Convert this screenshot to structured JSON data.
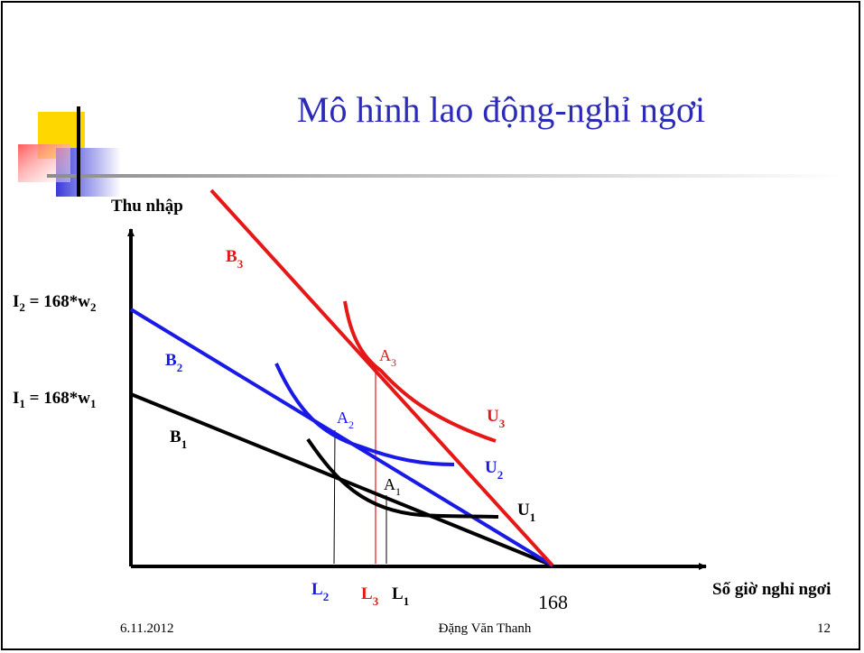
{
  "slide": {
    "title": "Mô hình lao động-nghỉ ngơi",
    "footer": {
      "date": "6.11.2012",
      "author": "Đặng Văn Thanh",
      "page": "12"
    }
  },
  "diagram": {
    "y_axis": {
      "label": "Thu nhập"
    },
    "x_axis": {
      "label": "Số giờ nghỉ ngơi",
      "endpoint": "168"
    },
    "intercepts": {
      "i2": {
        "main": "I",
        "sub": "2",
        "rest": " = 168*w",
        "sub2": "2"
      },
      "i1": {
        "main": "I",
        "sub": "1",
        "rest": " = 168*w",
        "sub2": "1"
      }
    },
    "budget_lines": {
      "b3": {
        "main": "B",
        "sub": "3"
      },
      "b2": {
        "main": "B",
        "sub": "2"
      },
      "b1": {
        "main": "B",
        "sub": "1"
      }
    },
    "indifference_curves": {
      "u3": {
        "main": "U",
        "sub": "3"
      },
      "u2": {
        "main": "U",
        "sub": "2"
      },
      "u1": {
        "main": "U",
        "sub": "1"
      }
    },
    "points": {
      "a3": {
        "main": "A",
        "sub": "3"
      },
      "a2": {
        "main": "A",
        "sub": "2"
      },
      "a1": {
        "main": "A",
        "sub": "1"
      }
    },
    "leisure_hours": {
      "l2": {
        "main": "L",
        "sub": "2"
      },
      "l3": {
        "main": "L",
        "sub": "3"
      },
      "l1": {
        "main": "L",
        "sub": "1"
      }
    },
    "colors": {
      "black": "#000000",
      "blue": "#1a1ae6",
      "red": "#e61717",
      "title": "#2b2bb8"
    }
  }
}
